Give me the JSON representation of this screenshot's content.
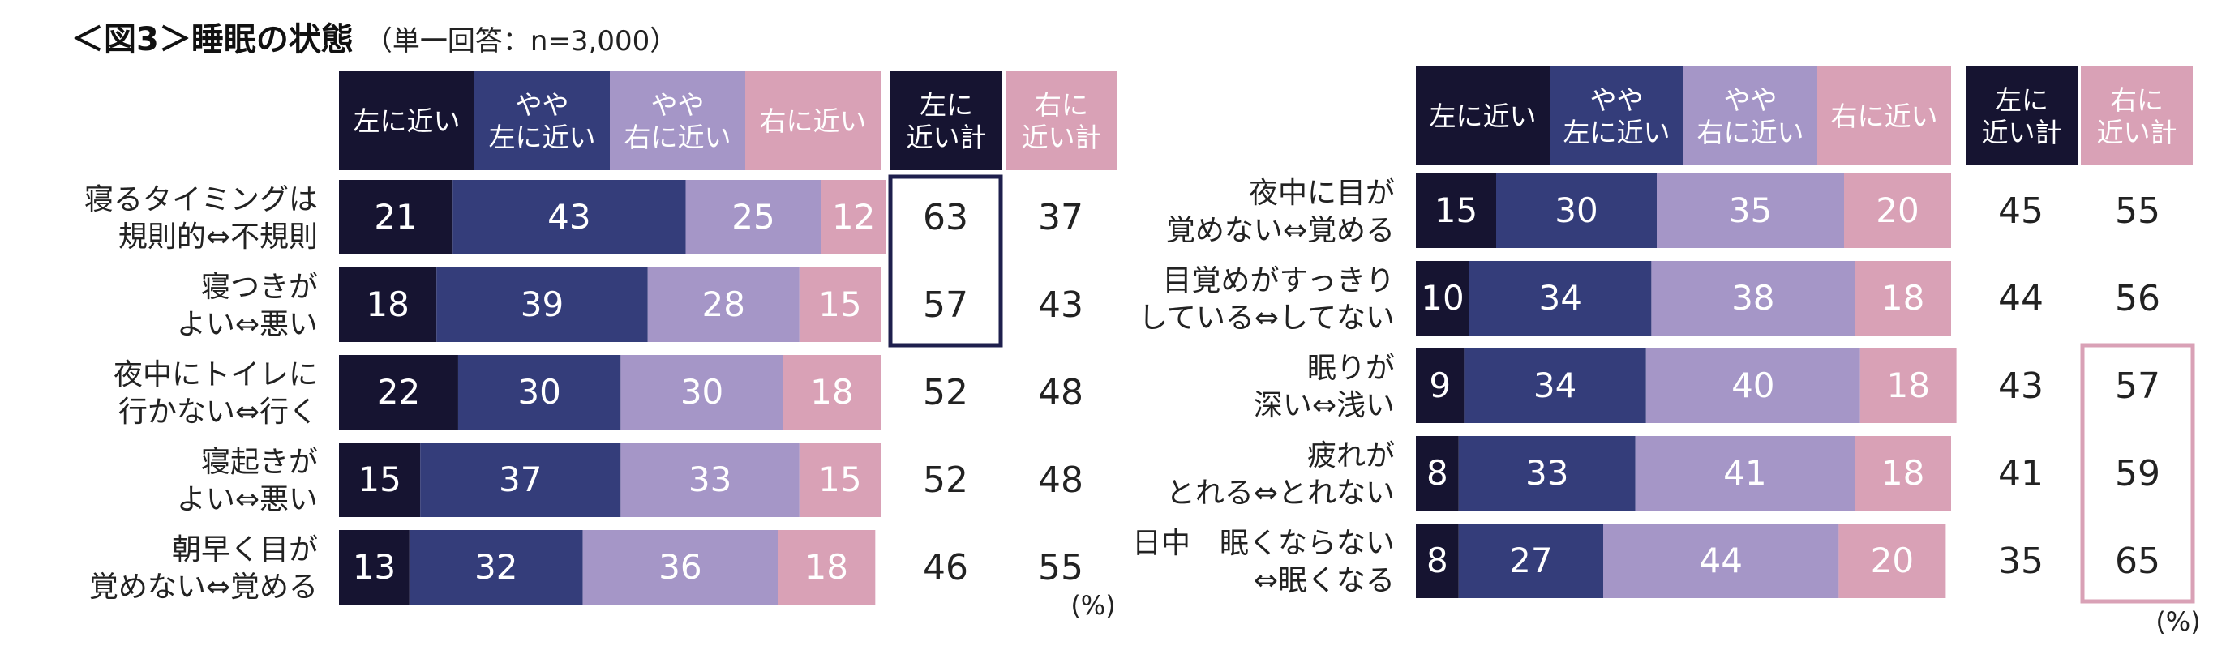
{
  "title": "＜図3＞睡眠の状態",
  "subtitle": "（単一回答：n=3,000）",
  "unit_label": "(%)",
  "colors": {
    "left": "#161431",
    "slightly_left": "#343d7a",
    "slightly_right": "#a596c7",
    "right": "#d9a1b6",
    "highlight_left": "#1e1f4d",
    "highlight_right": "#d9a1b6"
  },
  "chart_data": [
    {
      "type": "bar",
      "stacked": true,
      "orientation": "horizontal",
      "legend": [
        "左に近い",
        "やや\n左に近い",
        "やや\n右に近い",
        "右に近い"
      ],
      "summary_headers": [
        "左に\n近い計",
        "右に\n近い計"
      ],
      "categories": [
        "寝るタイミングは\n規則的⇔不規則",
        "寝つきが\nよい⇔悪い",
        "夜中にトイレに\n行かない⇔行く",
        "寝起きが\nよい⇔悪い",
        "朝早く目が\n覚めない⇔覚める"
      ],
      "series": [
        {
          "name": "左に近い",
          "values": [
            21,
            18,
            22,
            15,
            13
          ]
        },
        {
          "name": "やや左に近い",
          "values": [
            43,
            39,
            30,
            37,
            32
          ]
        },
        {
          "name": "やや右に近い",
          "values": [
            25,
            28,
            30,
            33,
            36
          ]
        },
        {
          "name": "右に近い",
          "values": [
            12,
            15,
            18,
            15,
            18
          ]
        }
      ],
      "left_total": [
        63,
        57,
        52,
        52,
        46
      ],
      "right_total": [
        37,
        43,
        48,
        48,
        55
      ],
      "highlight": {
        "column": "left",
        "rows": [
          0,
          1
        ]
      },
      "unit": "(%)"
    },
    {
      "type": "bar",
      "stacked": true,
      "orientation": "horizontal",
      "legend": [
        "左に近い",
        "やや\n左に近い",
        "やや\n右に近い",
        "右に近い"
      ],
      "summary_headers": [
        "左に\n近い計",
        "右に\n近い計"
      ],
      "categories": [
        "夜中に目が\n覚めない⇔覚める",
        "目覚めがすっきり\nしている⇔してない",
        "眠りが\n深い⇔浅い",
        "疲れが\nとれる⇔とれない",
        "日中　眠くならない\n⇔眠くなる"
      ],
      "series": [
        {
          "name": "左に近い",
          "values": [
            15,
            10,
            9,
            8,
            8
          ]
        },
        {
          "name": "やや左に近い",
          "values": [
            30,
            34,
            34,
            33,
            27
          ]
        },
        {
          "name": "やや右に近い",
          "values": [
            35,
            38,
            40,
            41,
            44
          ]
        },
        {
          "name": "右に近い",
          "values": [
            20,
            18,
            18,
            18,
            20
          ]
        }
      ],
      "left_total": [
        45,
        44,
        43,
        41,
        35
      ],
      "right_total": [
        55,
        56,
        57,
        59,
        65
      ],
      "highlight": {
        "column": "right",
        "rows": [
          2,
          3,
          4
        ]
      },
      "unit": "(%)"
    }
  ]
}
